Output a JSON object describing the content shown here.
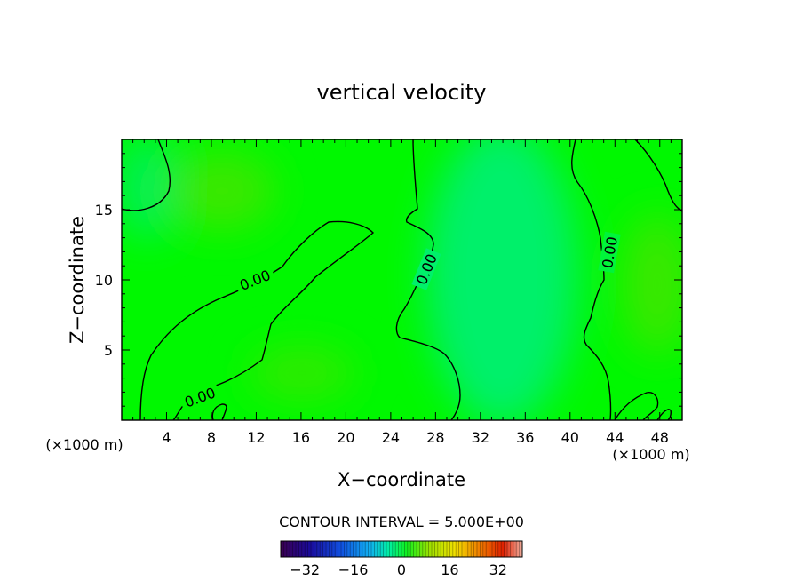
{
  "chart_data": {
    "type": "contour",
    "title": "vertical velocity",
    "xlabel": "X−coordinate",
    "ylabel": "Z−coordinate",
    "x_unit_left": "(×1000 m)",
    "x_unit_right": "(×1000 m)",
    "xlim": [
      0,
      50
    ],
    "ylim": [
      0,
      20
    ],
    "xticks": [
      4,
      8,
      12,
      16,
      20,
      24,
      28,
      32,
      36,
      40,
      44,
      48
    ],
    "yticks": [
      5,
      10,
      15
    ],
    "contour_level_labels": [
      "0.00",
      "0.00",
      "0.00",
      "0.00"
    ],
    "contour_interval_text": "CONTOUR INTERVAL = 5.000E+00",
    "colorbar": {
      "min": -40,
      "max": 40,
      "ticks": [
        -32,
        -16,
        0,
        16,
        32
      ],
      "tick_labels": [
        "−32",
        "−16",
        "0",
        "16",
        "32"
      ]
    },
    "field_color": "#00f800",
    "colors": {
      "contour_line": "#000000",
      "upward_tint": "#00f06a",
      "downward_tint": "#3ae800"
    }
  }
}
